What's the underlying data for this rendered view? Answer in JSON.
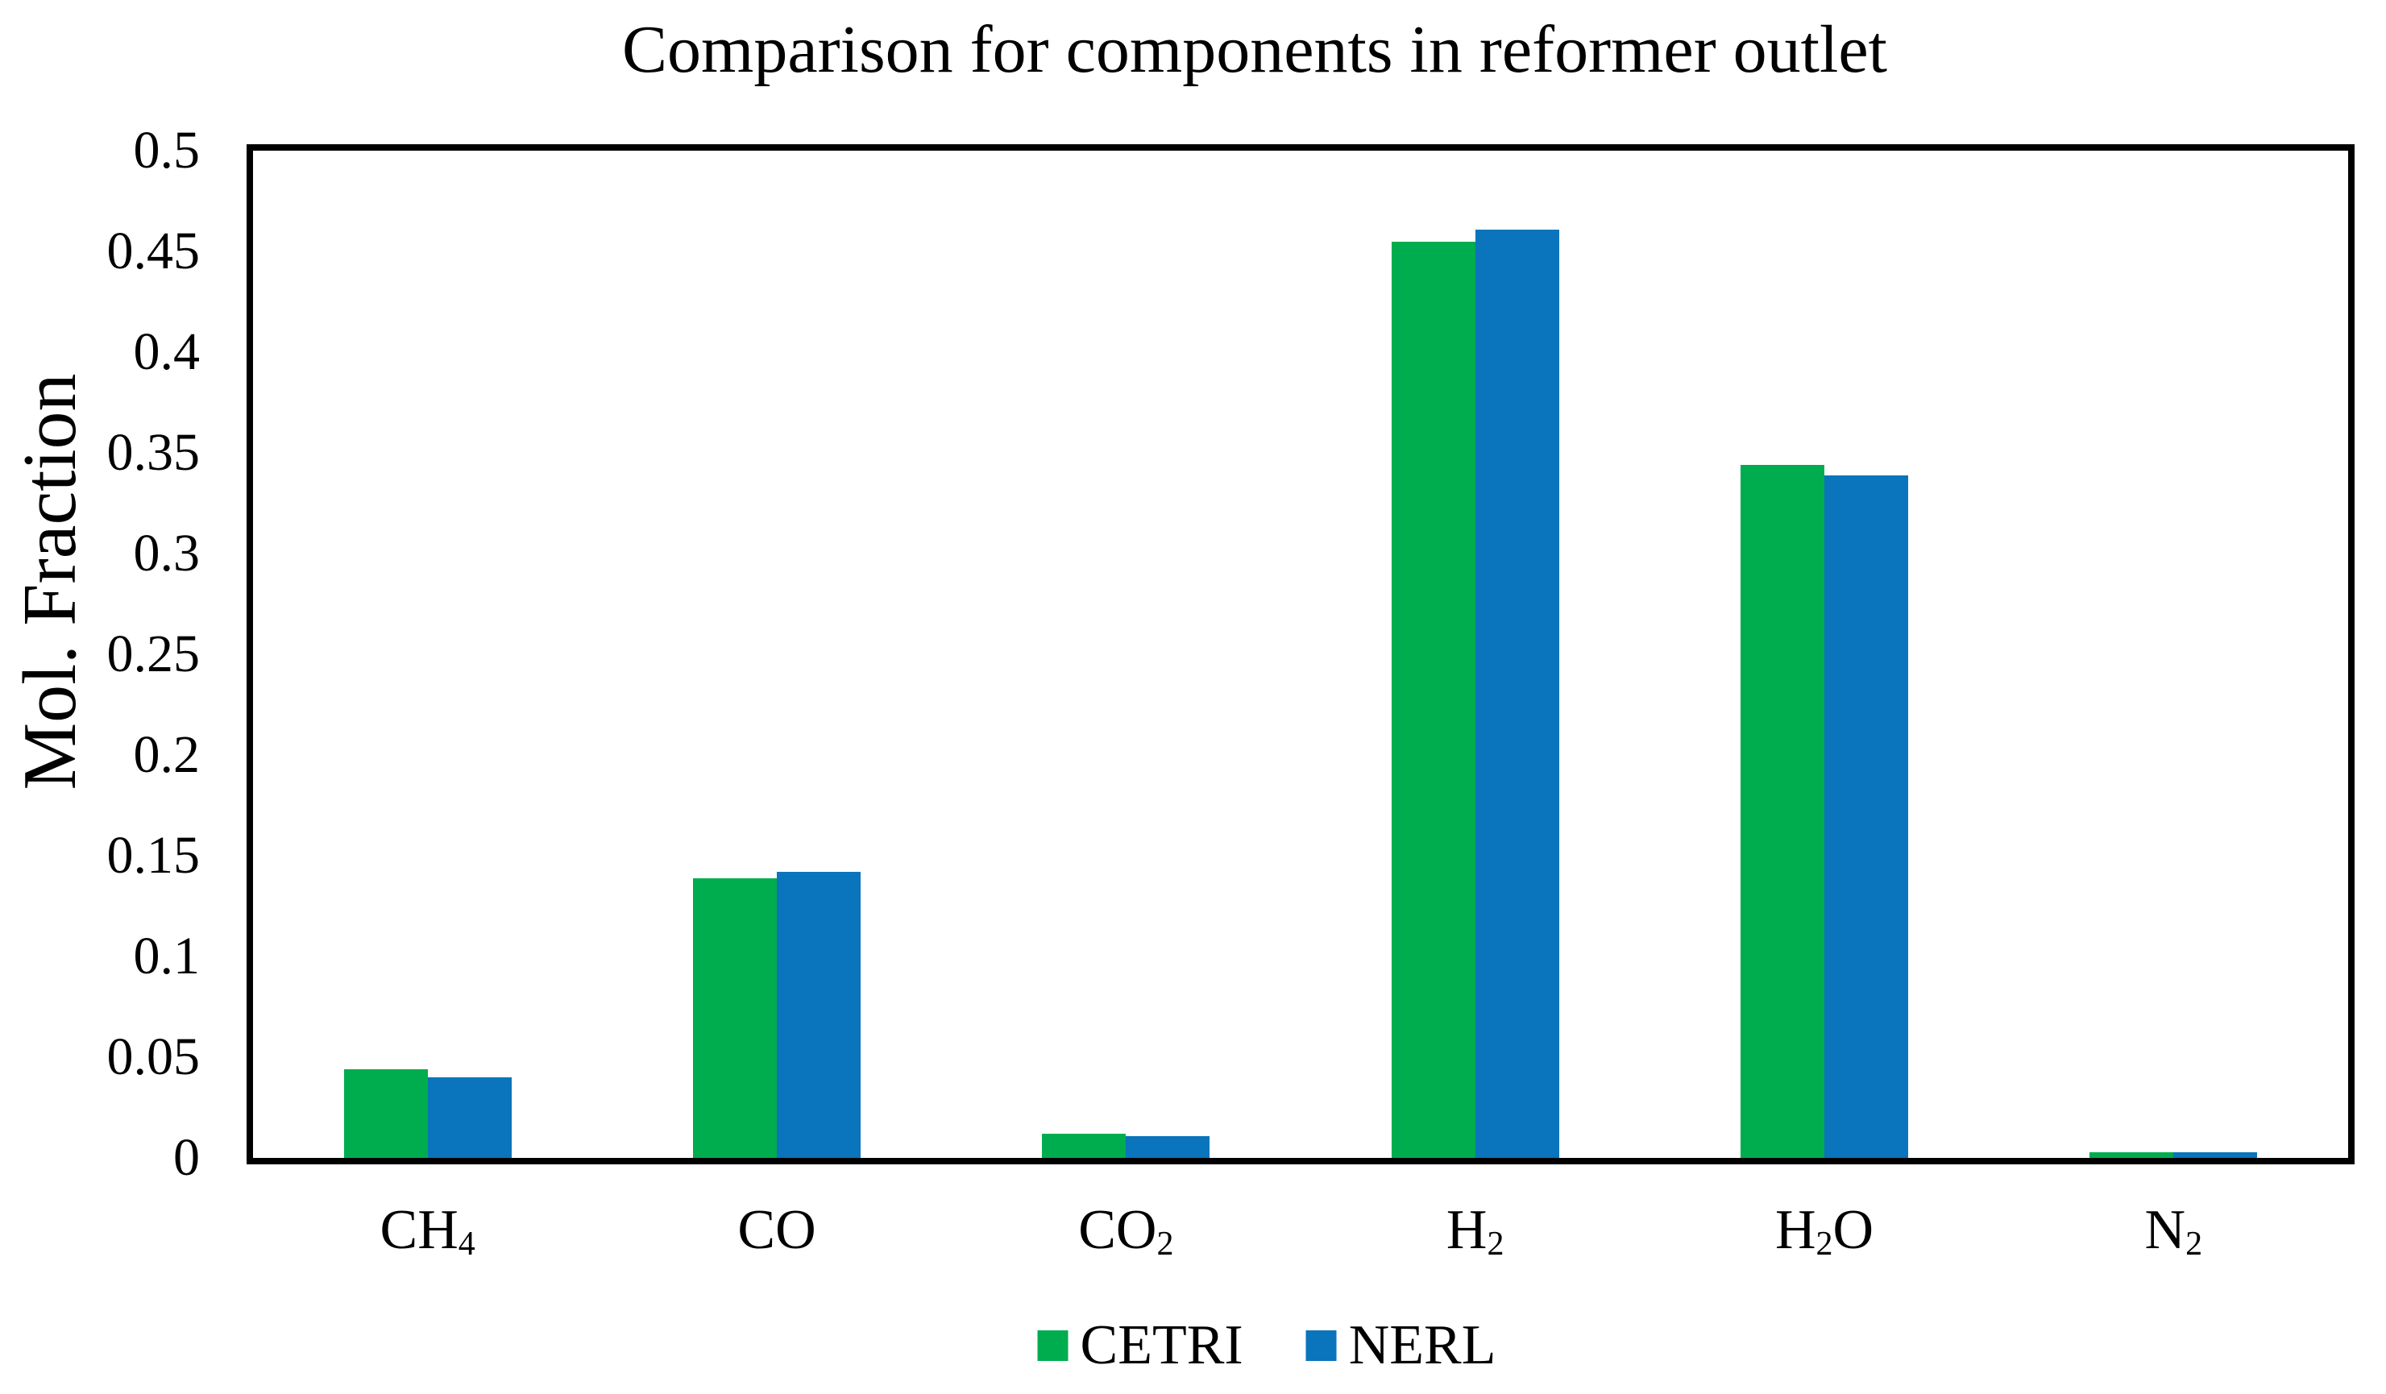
{
  "figure": {
    "title": "Comparison for components in reformer outlet"
  },
  "chart_data": {
    "type": "bar",
    "title": "Comparison for components in reformer outlet",
    "xlabel": "",
    "ylabel": "Mol. Fraction",
    "ylim": [
      0,
      0.5
    ],
    "ytick_step": 0.05,
    "yticks": [
      "0",
      "0.05",
      "0.1",
      "0.15",
      "0.2",
      "0.25",
      "0.3",
      "0.35",
      "0.4",
      "0.45",
      "0.5"
    ],
    "grid": false,
    "plot_border": "full-box",
    "legend_position": "bottom-center",
    "categories": [
      "CH4",
      "CO",
      "CO2",
      "H2",
      "H2O",
      "N2"
    ],
    "categories_display": [
      {
        "parts": [
          {
            "t": "CH"
          },
          {
            "t": "4",
            "sub": true
          }
        ]
      },
      {
        "parts": [
          {
            "t": "CO"
          }
        ]
      },
      {
        "parts": [
          {
            "t": "CO"
          },
          {
            "t": "2",
            "sub": true
          }
        ]
      },
      {
        "parts": [
          {
            "t": "H"
          },
          {
            "t": "2",
            "sub": true
          }
        ]
      },
      {
        "parts": [
          {
            "t": "H"
          },
          {
            "t": "2",
            "sub": true
          },
          {
            "t": "O"
          }
        ]
      },
      {
        "parts": [
          {
            "t": "N"
          },
          {
            "t": "2",
            "sub": true
          }
        ]
      }
    ],
    "series": [
      {
        "name": "CETRI",
        "color": "#00AD4E",
        "values": [
          0.044,
          0.139,
          0.012,
          0.455,
          0.344,
          0.003
        ]
      },
      {
        "name": "NERL",
        "color": "#0A74BC",
        "values": [
          0.04,
          0.142,
          0.011,
          0.461,
          0.339,
          0.003
        ]
      }
    ],
    "colors": {
      "cetri_green": "#00AD4E",
      "nerl_blue": "#0A74BC",
      "axis_black": "#000000",
      "background": "#FFFFFF"
    }
  }
}
